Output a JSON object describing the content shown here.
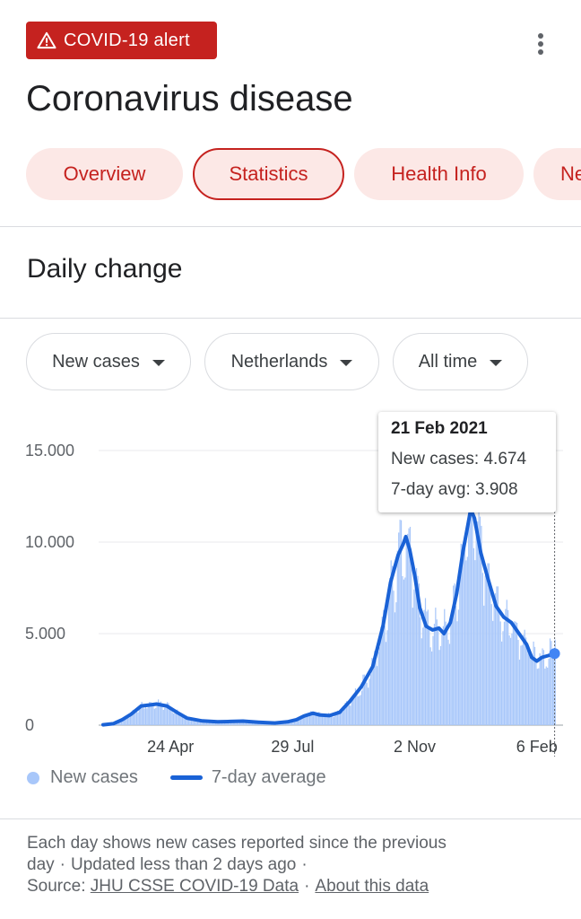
{
  "alert": {
    "label": "COVID-19 alert",
    "icon": "warning-icon"
  },
  "title": "Coronavirus disease",
  "tabs": [
    {
      "label": "Overview",
      "selected": false
    },
    {
      "label": "Statistics",
      "selected": true
    },
    {
      "label": "Health Info",
      "selected": false
    },
    {
      "label": "Ne",
      "selected": false
    }
  ],
  "section_title": "Daily change",
  "filters": {
    "metric": "New cases",
    "location": "Netherlands",
    "range": "All time"
  },
  "tooltip": {
    "date": "21 Feb 2021",
    "new_cases": "New cases: 4.674",
    "avg": "7-day avg: 3.908"
  },
  "legend": {
    "bars": "New cases",
    "line": "7-day average"
  },
  "footnote": {
    "text1": "Each day shows new cases reported since the previous day",
    "text2": "Updated less than 2 days ago",
    "source_label": "Source:",
    "source_link": "JHU CSSE COVID-19 Data",
    "about_link": "About this data"
  },
  "colors": {
    "accent": "#c5221f",
    "bar": "#a8c7fa",
    "line": "#1a62d6"
  },
  "chart_data": {
    "type": "bar",
    "title": "",
    "ylabel": "",
    "xlabel": "",
    "ylim": [
      0,
      15000
    ],
    "y_ticks": [
      0,
      5000,
      10000,
      15000
    ],
    "y_tick_labels": [
      "0",
      "5.000",
      "10.000",
      "15.000"
    ],
    "x_tick_labels": [
      "24 Apr",
      "29 Jul",
      "2 Nov",
      "6 Feb"
    ],
    "x_tick_days": [
      53,
      149,
      245,
      341
    ],
    "day_count": 356,
    "series": [
      {
        "name": "New cases",
        "kind": "bar"
      },
      {
        "name": "7-day average",
        "kind": "line",
        "points": [
          [
            0,
            20
          ],
          [
            8,
            80
          ],
          [
            15,
            300
          ],
          [
            22,
            600
          ],
          [
            30,
            1050
          ],
          [
            36,
            1100
          ],
          [
            42,
            1150
          ],
          [
            50,
            1050
          ],
          [
            58,
            700
          ],
          [
            66,
            380
          ],
          [
            78,
            230
          ],
          [
            90,
            180
          ],
          [
            100,
            200
          ],
          [
            110,
            220
          ],
          [
            122,
            160
          ],
          [
            135,
            120
          ],
          [
            145,
            180
          ],
          [
            152,
            300
          ],
          [
            158,
            500
          ],
          [
            165,
            650
          ],
          [
            170,
            560
          ],
          [
            178,
            520
          ],
          [
            186,
            700
          ],
          [
            194,
            1300
          ],
          [
            203,
            2100
          ],
          [
            212,
            3200
          ],
          [
            220,
            5400
          ],
          [
            226,
            7800
          ],
          [
            232,
            9300
          ],
          [
            236,
            9900
          ],
          [
            238,
            10300
          ],
          [
            241,
            9600
          ],
          [
            245,
            8200
          ],
          [
            249,
            6400
          ],
          [
            254,
            5400
          ],
          [
            259,
            5200
          ],
          [
            264,
            5300
          ],
          [
            268,
            5000
          ],
          [
            273,
            5600
          ],
          [
            278,
            7200
          ],
          [
            283,
            9500
          ],
          [
            287,
            11000
          ],
          [
            289,
            11800
          ],
          [
            292,
            11300
          ],
          [
            297,
            9400
          ],
          [
            303,
            7900
          ],
          [
            309,
            6500
          ],
          [
            315,
            5900
          ],
          [
            321,
            5600
          ],
          [
            327,
            5000
          ],
          [
            333,
            4400
          ],
          [
            337,
            3700
          ],
          [
            341,
            3500
          ],
          [
            345,
            3700
          ],
          [
            350,
            3800
          ],
          [
            355,
            3908
          ]
        ]
      }
    ],
    "highlight": {
      "label": "21 Feb 2021",
      "new_cases": 4674,
      "avg": 3908
    }
  }
}
